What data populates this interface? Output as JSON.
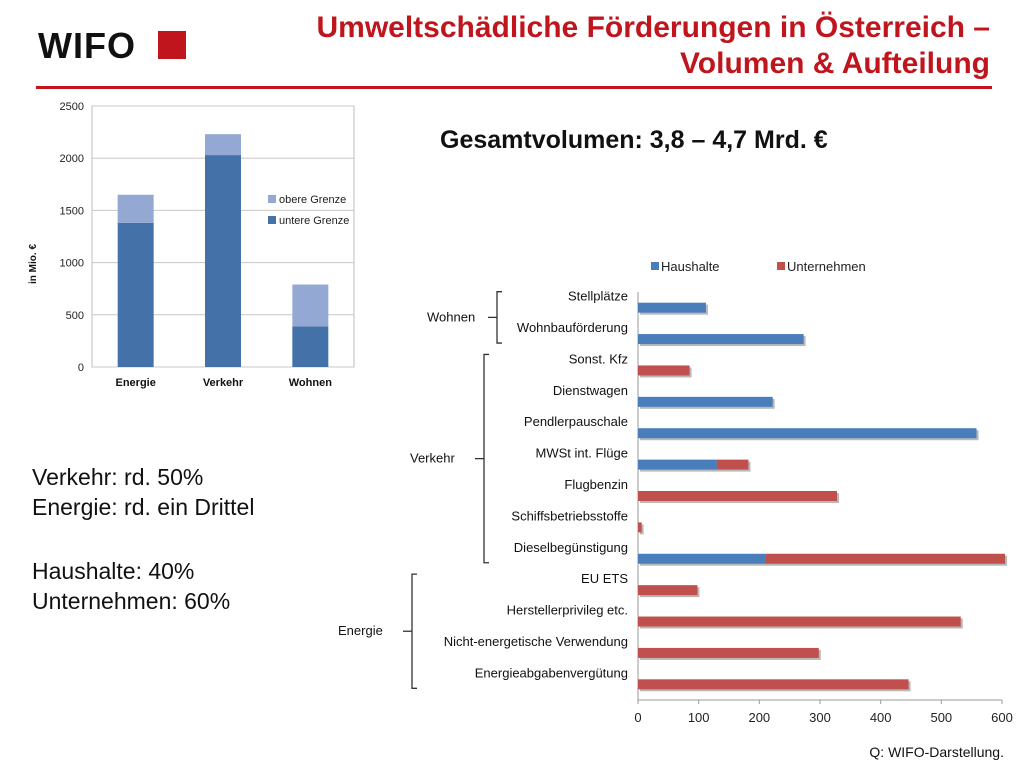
{
  "header": {
    "logo_text": "WIFO",
    "title_line1": "Umweltschädliche Förderungen in Österreich –",
    "title_line2": "Volumen & Aufteilung"
  },
  "total": "Gesamtvolumen: 3,8 – 4,7 Mrd. €",
  "summary": {
    "line1": "Verkehr: rd. 50%",
    "line2": "Energie: rd. ein Drittel",
    "line3": "Haushalte: 40%",
    "line4": "Unternehmen: 60%"
  },
  "source": "Q: WIFO-Darstellung.",
  "colors": {
    "accent": "#c0151d",
    "lower": "#4472a8",
    "upper": "#93a9d3",
    "haushalte": "#4a7ebb",
    "unternehmen": "#c0504d"
  },
  "chart_data": [
    {
      "type": "bar",
      "stacked": true,
      "categories": [
        "Energie",
        "Verkehr",
        "Wohnen"
      ],
      "series": [
        {
          "name": "untere Grenze",
          "values": [
            1380,
            2030,
            390
          ]
        },
        {
          "name": "obere Grenze",
          "values": [
            270,
            200,
            400
          ]
        }
      ],
      "ylabel": "in Mio. €",
      "ylim": [
        0,
        2500
      ],
      "yticks": [
        "0",
        "500",
        "1000",
        "1500",
        "2000",
        "2500"
      ],
      "legend_position": "right",
      "grid": true
    },
    {
      "type": "bar",
      "orientation": "horizontal",
      "stacked": true,
      "categories": [
        "Stellplätze",
        "Wohnbauförderung",
        "Sonst. Kfz",
        "Dienstwagen",
        "Pendlerpauschale",
        "MWSt int. Flüge",
        "Flugbenzin",
        "Schiffsbetriebsstoffe",
        "Dieselbegünstigung",
        "EU ETS",
        "Herstellerprivileg etc.",
        "Nicht-energetische Verwendung",
        "Energieabgabenvergütung"
      ],
      "groups": [
        {
          "name": "Wohnen",
          "from": 0,
          "to": 1
        },
        {
          "name": "Verkehr",
          "from": 2,
          "to": 8
        },
        {
          "name": "Energie",
          "from": 9,
          "to": 12
        }
      ],
      "series": [
        {
          "name": "Haushalte",
          "values": [
            112,
            273,
            0,
            222,
            558,
            130,
            0,
            0,
            210,
            0,
            0,
            0,
            0
          ]
        },
        {
          "name": "Unternehmen",
          "values": [
            0,
            0,
            85,
            0,
            0,
            52,
            328,
            6,
            395,
            98,
            532,
            298,
            446
          ]
        }
      ],
      "xlim": [
        0,
        600
      ],
      "xticks": [
        "0",
        "100",
        "200",
        "300",
        "400",
        "500",
        "600"
      ],
      "legend_position": "top"
    }
  ]
}
